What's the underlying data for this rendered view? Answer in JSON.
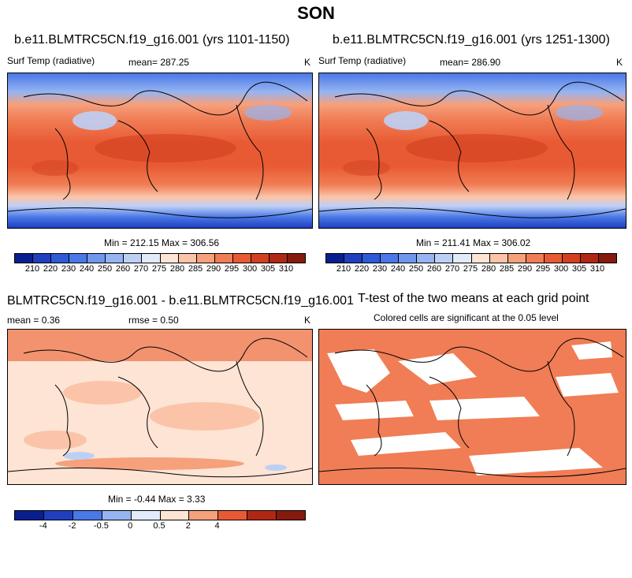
{
  "figure": {
    "season": "SON"
  },
  "panels": [
    {
      "title": "b.e11.BLMTRC5CN.f19_g16.001 (yrs 1101-1150)",
      "variable": "Surf Temp (radiative)",
      "mean_label": "mean= 287.25",
      "units": "K",
      "minmax_label": "Min = 212.15 Max = 306.56"
    },
    {
      "title": "b.e11.BLMTRC5CN.f19_g16.001 (yrs 1251-1300)",
      "variable": "Surf Temp (radiative)",
      "mean_label": "mean= 286.90",
      "units": "K",
      "minmax_label": "Min = 211.41 Max = 306.02"
    },
    {
      "title": "BLMTRC5CN.f19_g16.001 - b.e11.BLMTRC5CN.f19_g16.001",
      "mean_label": "mean =   0.36",
      "rmse_label": "rmse =   0.50",
      "units": "K",
      "minmax_label": "Min = -0.44 Max =   3.33"
    },
    {
      "title": "T-test of the two means at each grid point",
      "subtitle": "Colored cells are significant at the 0.05 level"
    }
  ],
  "colorbars": {
    "absolute": {
      "labels": [
        "210",
        "220",
        "230",
        "240",
        "250",
        "260",
        "270",
        "275",
        "280",
        "285",
        "290",
        "295",
        "300",
        "305",
        "310"
      ],
      "colors": [
        "#0a1f8f",
        "#1f3fbf",
        "#2f5ad6",
        "#4a78e6",
        "#6f97ee",
        "#96b4f2",
        "#bcd0f6",
        "#e2ebfa",
        "#fde4d4",
        "#fbc4a8",
        "#f6a07c",
        "#f07d55",
        "#e85a33",
        "#d2401f",
        "#b02815",
        "#861a0d"
      ]
    },
    "difference": {
      "labels": [
        "-4",
        "-2",
        "-0.5",
        "0",
        "0.5",
        "2",
        "4"
      ],
      "colors": [
        "#0a1f8f",
        "#1f3fbf",
        "#4a78e6",
        "#96b4f2",
        "#e2ebfa",
        "#fde4d4",
        "#f6a07c",
        "#e85a33",
        "#b02815",
        "#861a0d"
      ]
    }
  }
}
